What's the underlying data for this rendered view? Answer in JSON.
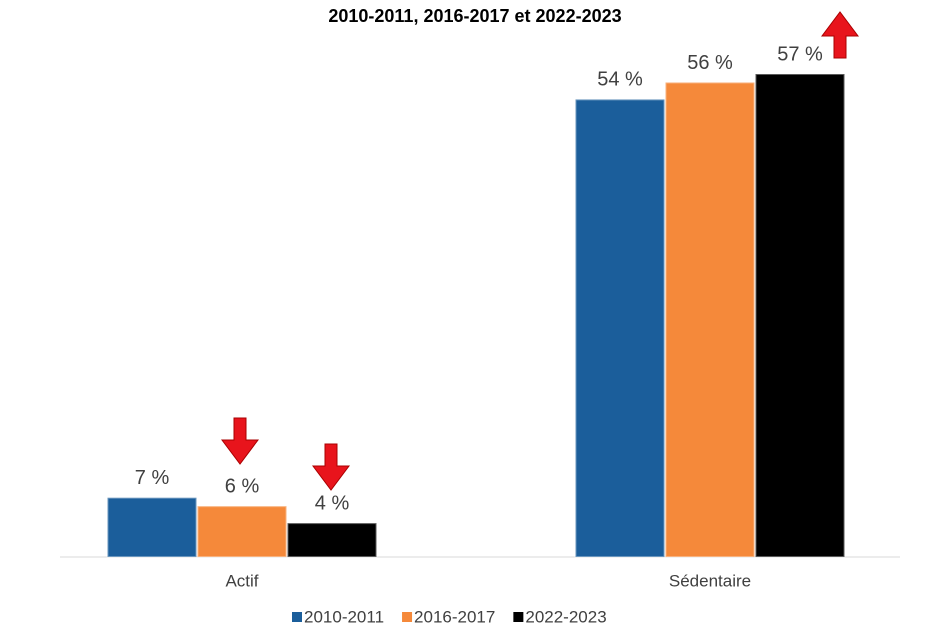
{
  "chart_data": {
    "type": "bar",
    "title": "2010-2011, 2016-2017 et 2022-2023",
    "categories": [
      "Actif",
      "Sédentaire"
    ],
    "series": [
      {
        "name": "2010-2011",
        "color": "#1b5e9b",
        "values": [
          7,
          54
        ],
        "value_labels": [
          "7 %",
          "54 %"
        ]
      },
      {
        "name": "2016-2017",
        "color": "#f5893a",
        "values": [
          6,
          56
        ],
        "value_labels": [
          "6 %",
          "56 %"
        ]
      },
      {
        "name": "2022-2023",
        "color": "#000000",
        "values": [
          4,
          57
        ],
        "value_labels": [
          "4 %",
          "57 %"
        ]
      }
    ],
    "legend": "bottom"
  }
}
